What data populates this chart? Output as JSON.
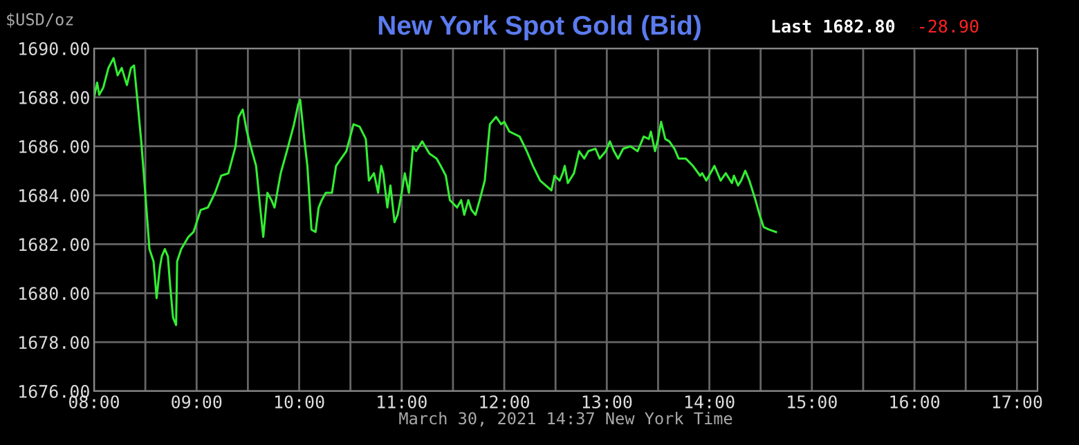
{
  "chart_data": {
    "type": "line",
    "title": "New York Spot Gold (Bid)",
    "ylabel": "$USD/oz",
    "xlabel": "March 30, 2021 14:37 New York Time",
    "annotations": [
      "Last 1682.80",
      "-28.90"
    ],
    "series": [
      {
        "color": "#33ee33",
        "x": [
          8.0,
          8.03,
          8.05,
          8.09,
          8.14,
          8.19,
          8.23,
          8.27,
          8.32,
          8.36,
          8.39,
          8.42,
          8.46,
          8.49,
          8.51,
          8.54,
          8.58,
          8.61,
          8.64,
          8.66,
          8.69,
          8.72,
          8.74,
          8.77,
          8.8,
          8.81,
          8.85,
          8.92,
          8.97,
          9.04,
          9.11,
          9.18,
          9.24,
          9.31,
          9.38,
          9.41,
          9.45,
          9.49,
          9.54,
          9.58,
          9.62,
          9.65,
          9.69,
          9.73,
          9.76,
          9.82,
          9.88,
          9.95,
          9.99,
          10.01,
          10.05,
          10.08,
          10.12,
          10.16,
          10.19,
          10.22,
          10.26,
          10.32,
          10.36,
          10.41,
          10.46,
          10.53,
          10.59,
          10.65,
          10.68,
          10.73,
          10.77,
          10.8,
          10.82,
          10.86,
          10.89,
          10.93,
          10.96,
          11.0,
          11.03,
          11.07,
          11.11,
          11.14,
          11.2,
          11.27,
          11.34,
          11.38,
          11.43,
          11.47,
          11.54,
          11.58,
          11.61,
          11.65,
          11.68,
          11.72,
          11.76,
          11.81,
          11.84,
          11.86,
          11.92,
          11.97,
          12.0,
          12.05,
          12.15,
          12.22,
          12.28,
          12.35,
          12.46,
          12.49,
          12.54,
          12.57,
          12.59,
          12.62,
          12.68,
          12.73,
          12.78,
          12.82,
          12.89,
          12.93,
          12.99,
          13.03,
          13.07,
          13.11,
          13.16,
          13.23,
          13.3,
          13.36,
          13.41,
          13.43,
          13.47,
          13.5,
          13.53,
          13.57,
          13.61,
          13.66,
          13.7,
          13.77,
          13.84,
          13.91,
          13.93,
          13.97,
          14.01,
          14.05,
          14.11,
          14.16,
          14.22,
          14.24,
          14.28,
          14.31,
          14.35,
          14.39,
          14.45,
          14.49,
          14.53,
          14.58,
          14.65
        ],
        "values": [
          1688.0,
          1688.6,
          1688.1,
          1688.4,
          1689.2,
          1689.6,
          1688.9,
          1689.2,
          1688.5,
          1689.2,
          1689.3,
          1688.0,
          1686.2,
          1684.6,
          1683.5,
          1681.8,
          1681.3,
          1679.8,
          1681.0,
          1681.5,
          1681.8,
          1681.5,
          1680.4,
          1679.0,
          1678.7,
          1681.3,
          1681.8,
          1682.3,
          1682.5,
          1683.4,
          1683.5,
          1684.1,
          1684.8,
          1684.9,
          1686.0,
          1687.2,
          1687.5,
          1686.6,
          1685.8,
          1685.2,
          1683.5,
          1682.3,
          1684.1,
          1683.8,
          1683.5,
          1684.9,
          1685.8,
          1686.9,
          1687.7,
          1687.9,
          1686.3,
          1685.2,
          1682.6,
          1682.5,
          1683.5,
          1683.8,
          1684.1,
          1684.1,
          1685.2,
          1685.5,
          1685.8,
          1686.9,
          1686.8,
          1686.3,
          1684.6,
          1684.9,
          1684.1,
          1685.2,
          1684.9,
          1683.5,
          1684.4,
          1682.9,
          1683.2,
          1684.1,
          1684.9,
          1684.1,
          1686.0,
          1685.8,
          1686.2,
          1685.7,
          1685.5,
          1685.2,
          1684.8,
          1683.8,
          1683.5,
          1683.8,
          1683.2,
          1683.8,
          1683.4,
          1683.2,
          1683.8,
          1684.6,
          1686.0,
          1686.9,
          1687.2,
          1686.9,
          1687.0,
          1686.6,
          1686.4,
          1685.8,
          1685.2,
          1684.6,
          1684.2,
          1684.8,
          1684.6,
          1684.9,
          1685.2,
          1684.5,
          1684.9,
          1685.8,
          1685.5,
          1685.8,
          1685.9,
          1685.5,
          1685.8,
          1686.2,
          1685.8,
          1685.5,
          1685.9,
          1686.0,
          1685.8,
          1686.4,
          1686.3,
          1686.6,
          1685.8,
          1686.3,
          1687.0,
          1686.3,
          1686.2,
          1685.9,
          1685.5,
          1685.5,
          1685.2,
          1684.8,
          1684.9,
          1684.6,
          1684.9,
          1685.2,
          1684.6,
          1684.9,
          1684.5,
          1684.8,
          1684.4,
          1684.6,
          1685.0,
          1684.6,
          1683.8,
          1683.2,
          1682.7,
          1682.6,
          1682.5
        ]
      }
    ],
    "xlim": [
      8,
      17.2
    ],
    "xticks": [
      {
        "value": 8,
        "label": "08:00"
      },
      {
        "value": 8.5,
        "label": null
      },
      {
        "value": 9,
        "label": "09:00"
      },
      {
        "value": 9.5,
        "label": null
      },
      {
        "value": 10,
        "label": "10:00"
      },
      {
        "value": 10.5,
        "label": null
      },
      {
        "value": 11,
        "label": "11:00"
      },
      {
        "value": 11.5,
        "label": null
      },
      {
        "value": 12,
        "label": "12:00"
      },
      {
        "value": 12.5,
        "label": null
      },
      {
        "value": 13,
        "label": "13:00"
      },
      {
        "value": 13.5,
        "label": null
      },
      {
        "value": 14,
        "label": "14:00"
      },
      {
        "value": 14.5,
        "label": null
      },
      {
        "value": 15,
        "label": "15:00"
      },
      {
        "value": 15.5,
        "label": null
      },
      {
        "value": 16,
        "label": "16:00"
      },
      {
        "value": 16.5,
        "label": null
      },
      {
        "value": 17,
        "label": "17:00"
      }
    ],
    "ylim": [
      1676,
      1690
    ],
    "yticks": [
      {
        "value": 1676,
        "label": "1676.00"
      },
      {
        "value": 1678,
        "label": "1678.00"
      },
      {
        "value": 1680,
        "label": "1680.00"
      },
      {
        "value": 1682,
        "label": "1682.00"
      },
      {
        "value": 1684,
        "label": "1684.00"
      },
      {
        "value": 1686,
        "label": "1686.00"
      },
      {
        "value": 1688,
        "label": "1688.00"
      },
      {
        "value": 1690,
        "label": "1690.00"
      }
    ],
    "grid": true,
    "legend": false
  }
}
